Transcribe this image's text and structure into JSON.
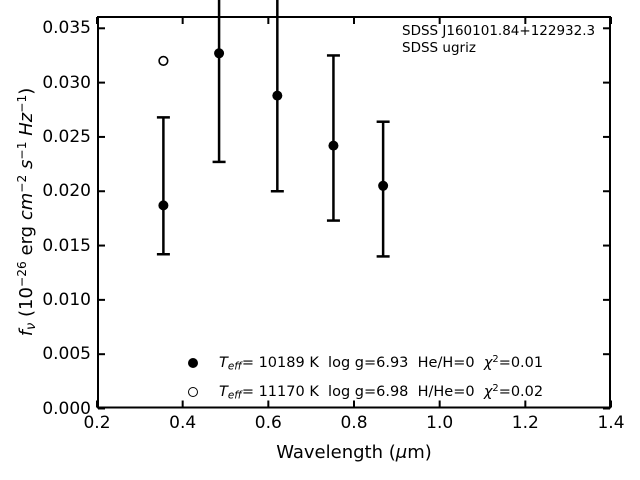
{
  "chart_data": {
    "type": "scatter",
    "title": "SDSS J160101.84+122932.3",
    "subtitle": "SDSS ugriz",
    "xlabel": "Wavelength (μm)",
    "ylabel": "f_ν (10^−26 erg cm^−2 s^−1 Hz^−1)",
    "xlim": [
      0.2,
      1.4
    ],
    "ylim": [
      0.0,
      0.0362
    ],
    "xticks": [
      0.2,
      0.4,
      0.6,
      0.8,
      1.0,
      1.2,
      1.4
    ],
    "yticks": [
      0.0,
      0.005,
      0.01,
      0.015,
      0.02,
      0.025,
      0.03,
      0.035
    ],
    "grid": false,
    "tick_direction": "in",
    "axis_color": "#000000",
    "series": [
      {
        "name": "SDSS ugriz photometry (filled circles)",
        "marker": "filled-circle",
        "color": "#000000",
        "points": [
          {
            "x": 0.355,
            "y": 0.0187,
            "err_upper_cap": 0.0268,
            "err_lower_cap": 0.0142,
            "upper_clipped": false
          },
          {
            "x": 0.485,
            "y": 0.0327,
            "err_upper_cap": null,
            "err_lower_cap": 0.0227,
            "upper_clipped": true
          },
          {
            "x": 0.621,
            "y": 0.0288,
            "err_upper_cap": null,
            "err_lower_cap": 0.02,
            "upper_clipped": true
          },
          {
            "x": 0.752,
            "y": 0.0242,
            "err_upper_cap": 0.0325,
            "err_lower_cap": 0.0173,
            "upper_clipped": false
          },
          {
            "x": 0.868,
            "y": 0.0205,
            "err_upper_cap": 0.0264,
            "err_lower_cap": 0.014,
            "upper_clipped": false
          }
        ]
      },
      {
        "name": "second model prediction (open circle)",
        "marker": "open-circle",
        "color": "#000000",
        "points": [
          {
            "x": 0.355,
            "y": 0.032
          }
        ]
      }
    ],
    "legend": [
      {
        "marker": "filled-circle",
        "label": "T_eff= 10189 K  log g=6.93  He/H=0  χ²=0.01"
      },
      {
        "marker": "open-circle",
        "label": "T_eff= 11170 K  log g=6.98  H/He=0  χ²=0.02"
      }
    ],
    "legend_position": "lower center inside"
  },
  "labels": {
    "annotation": {
      "line1": "SDSS J160101.84+122932.3",
      "line2": "SDSS ugriz"
    },
    "xlabel": {
      "pre": "Wavelength (",
      "mu": "μ",
      "post": "m)"
    },
    "ylabel": {
      "f": "f",
      "nu": "ν",
      "open": " (10",
      "exp26": "−26",
      "erg": " erg ",
      "cm": "cm",
      "cmexp": "−2",
      "sp1": " ",
      "s": "s",
      "sexp": "−1",
      "sp2": " ",
      "hz": "Hz",
      "hzexp": "−1",
      "close": ")"
    },
    "xticks": [
      "0.2",
      "0.4",
      "0.6",
      "0.8",
      "1.0",
      "1.2",
      "1.4"
    ],
    "yticks": [
      "0.000",
      "0.005",
      "0.010",
      "0.015",
      "0.020",
      "0.025",
      "0.030",
      "0.035"
    ],
    "legend": [
      {
        "t": "T",
        "eff": "eff",
        "body": "= 10189 K  log g=6.93  He/H=0  ",
        "chi": "χ",
        "two": "2",
        "tail": "=0.01"
      },
      {
        "t": "T",
        "eff": "eff",
        "body": "= 11170 K  log g=6.98  H/He=0  ",
        "chi": "χ",
        "two": "2",
        "tail": "=0.02"
      }
    ]
  }
}
